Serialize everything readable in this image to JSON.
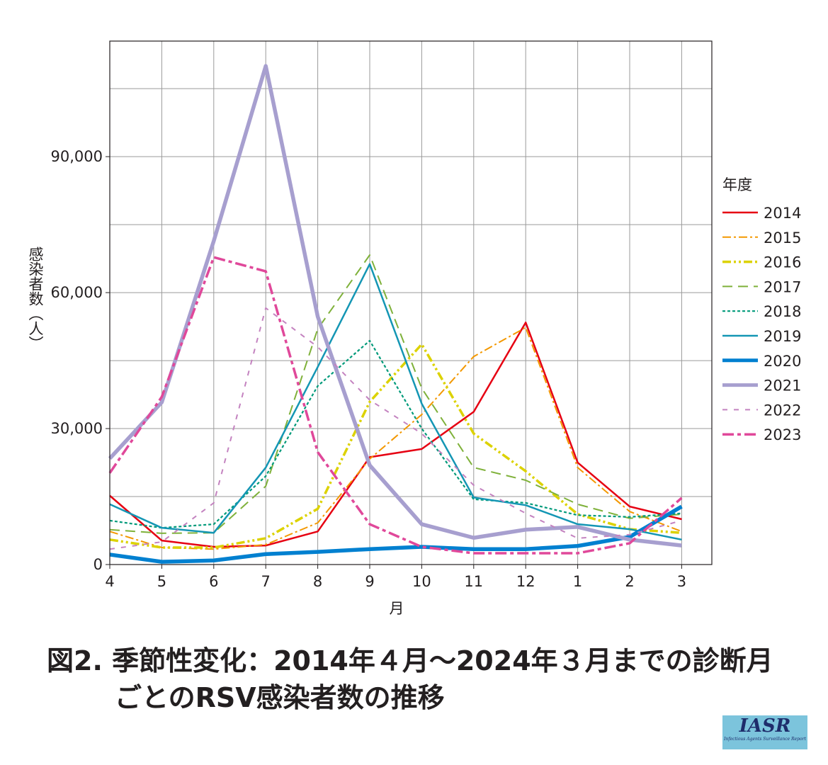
{
  "chart_data": {
    "type": "line",
    "title": "図2. 季節性変化：2014年4月～2024年3月までの診断月ごとのRSV感染者数の推移",
    "xlabel": "月",
    "ylabel": "感染者数（人）",
    "categories": [
      "4",
      "5",
      "6",
      "7",
      "8",
      "9",
      "10",
      "11",
      "12",
      "1",
      "2",
      "3"
    ],
    "yticks": [
      0,
      30000,
      60000,
      90000
    ],
    "ytick_labels": [
      "0",
      "30,000",
      "60,000",
      "90,000"
    ],
    "ylim": [
      0,
      115500
    ],
    "grid": true,
    "legend_title": "年度",
    "legend_position": "right",
    "series": [
      {
        "name": "2014",
        "color": "#e60012",
        "style": "solid",
        "values": [
          15200,
          5300,
          3900,
          4200,
          7300,
          23700,
          25500,
          33700,
          53400,
          22500,
          12800,
          10000
        ]
      },
      {
        "name": "2015",
        "color": "#f39800",
        "style": "dashdot",
        "values": [
          7300,
          3750,
          3400,
          4400,
          9200,
          23300,
          33100,
          45900,
          52300,
          21400,
          11700,
          7300
        ]
      },
      {
        "name": "2016",
        "color": "#dcd200",
        "style": "dashdotdot",
        "values": [
          5500,
          3750,
          3750,
          5800,
          12300,
          35900,
          48600,
          28900,
          20600,
          11100,
          7800,
          7000
        ]
      },
      {
        "name": "2017",
        "color": "#7fb13a",
        "style": "dashed",
        "values": [
          7700,
          6900,
          7000,
          17300,
          52000,
          68300,
          38900,
          21400,
          18600,
          13300,
          10200,
          11100
        ]
      },
      {
        "name": "2018",
        "color": "#009a7a",
        "style": "dotted",
        "values": [
          9700,
          8100,
          8900,
          19500,
          39400,
          49400,
          30000,
          14400,
          13600,
          10900,
          10500,
          11300
        ]
      },
      {
        "name": "2019",
        "color": "#1496b4",
        "style": "solid",
        "values": [
          13300,
          8100,
          7000,
          21400,
          43600,
          66300,
          35500,
          14800,
          13100,
          8900,
          7800,
          5500
        ]
      },
      {
        "name": "2020",
        "color": "#0080d0",
        "style": "thick",
        "values": [
          2200,
          600,
          900,
          2300,
          2800,
          3400,
          3900,
          3400,
          3400,
          4100,
          6100,
          12800
        ]
      },
      {
        "name": "2021",
        "color": "#a79fcf",
        "style": "thicker",
        "values": [
          23400,
          35800,
          71400,
          110000,
          54700,
          21900,
          8900,
          5900,
          7700,
          8300,
          5500,
          4200
        ]
      },
      {
        "name": "2022",
        "color": "#c483c0",
        "style": "sparse-dash",
        "values": [
          3400,
          5000,
          13600,
          56600,
          48000,
          36300,
          28900,
          17500,
          11300,
          5800,
          6600,
          9700
        ]
      },
      {
        "name": "2023",
        "color": "#e0489a",
        "style": "thick-dashdot",
        "values": [
          20200,
          37000,
          67800,
          64700,
          24800,
          8900,
          3900,
          2500,
          2500,
          2500,
          4700,
          14700
        ]
      }
    ]
  },
  "caption": {
    "line1": "図2.  季節性変化：2014年４月～2024年３月までの診断月",
    "line2": "ごとのRSV感染者数の推移"
  },
  "logo": {
    "text": "IASR",
    "subtitle": "Infectious Agents Surveillance Report"
  }
}
